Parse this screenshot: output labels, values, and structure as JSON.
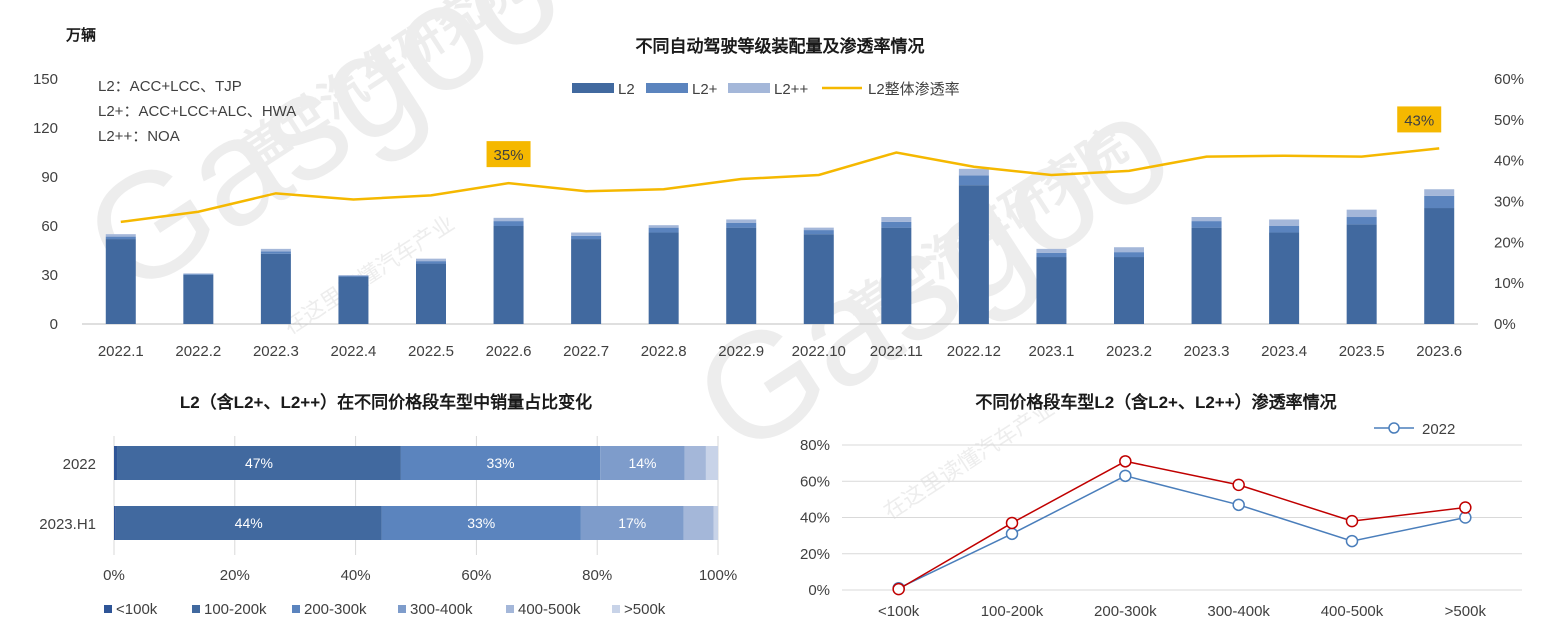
{
  "colors": {
    "l2": "#41699F",
    "l2p": "#5B84BE",
    "l2pp": "#A4B7D9",
    "rate": "#F5B800",
    "callout": "#F5B800",
    "line2022": "#4A7EBB",
    "line2023": "#C00000",
    "seg1": "#2F5597",
    "seg2": "#41699F",
    "seg3": "#5B84BE",
    "seg4": "#7E9CCB",
    "seg5": "#A4B7D9",
    "seg6": "#C8D3E8",
    "redText": "#C00000"
  },
  "watermark": {
    "brand_cn": "盖世汽车研究院",
    "brand_en": "Gasgoo",
    "slogan": "在这里读懂汽车产业"
  },
  "chart_data": [
    {
      "type": "bar",
      "title": "不同自动驾驶等级装配量及渗透率情况",
      "ylabel": "万辆",
      "ylim": [
        0,
        150
      ],
      "yticks": [
        "0",
        "30",
        "60",
        "90",
        "120",
        "150"
      ],
      "y2lim": [
        0,
        60
      ],
      "y2ticks": [
        "0%",
        "10%",
        "20%",
        "30%",
        "40%",
        "50%",
        "60%"
      ],
      "stacked": true,
      "legend_position": "top",
      "notes": [
        "L2：ACC+LCC、TJP",
        "L2+：ACC+LCC+ALC、HWA",
        "L2++：NOA"
      ],
      "categories": [
        "2022.1",
        "2022.2",
        "2022.3",
        "2022.4",
        "2022.5",
        "2022.6",
        "2022.7",
        "2022.8",
        "2022.9",
        "2022.10",
        "2022.11",
        "2022.12",
        "2023.1",
        "2023.2",
        "2023.3",
        "2023.4",
        "2023.5",
        "2023.6"
      ],
      "series": [
        {
          "name": "L2",
          "values": [
            52,
            30,
            43,
            29,
            37,
            60,
            52,
            56,
            59,
            55,
            59,
            85,
            41,
            41,
            59,
            56,
            61,
            71
          ]
        },
        {
          "name": "L2+",
          "values": [
            1.5,
            0.5,
            1.5,
            0.5,
            1.5,
            3,
            2,
            3,
            3,
            2.5,
            3.5,
            6,
            2.5,
            3,
            4,
            4,
            4.5,
            7.5
          ]
        },
        {
          "name": "L2++",
          "values": [
            1.5,
            0.5,
            1.5,
            0.5,
            1.5,
            2,
            2,
            1.5,
            2,
            1.5,
            3,
            4,
            2.5,
            3,
            2.5,
            4,
            4.5,
            4
          ]
        },
        {
          "name": "L2整体渗透率",
          "axis": "right",
          "values": [
            25,
            27.5,
            32,
            30.5,
            31.5,
            34.5,
            32.5,
            33,
            35.5,
            36.5,
            42,
            38.5,
            36.5,
            37.5,
            41,
            41.2,
            41,
            43
          ]
        }
      ],
      "annotations": [
        {
          "category": "2022.6",
          "text": "35%"
        },
        {
          "category": "2023.6",
          "text": "43%"
        }
      ]
    },
    {
      "type": "bar",
      "orientation": "horizontal",
      "stacked": true,
      "title": "L2（含L2+、L2++）在不同价格段车型中销量占比变化",
      "categories": [
        "2022",
        "2023.H1"
      ],
      "xlim": [
        0,
        100
      ],
      "xticks": [
        "0%",
        "20%",
        "40%",
        "60%",
        "80%",
        "100%"
      ],
      "legend_position": "bottom",
      "series": [
        {
          "name": "<100k",
          "values": [
            0.5,
            0.3
          ]
        },
        {
          "name": "100-200k",
          "values": [
            47,
            44
          ]
        },
        {
          "name": "200-300k",
          "values": [
            33,
            33
          ]
        },
        {
          "name": "300-400k",
          "values": [
            14,
            17
          ]
        },
        {
          "name": "400-500k",
          "values": [
            3.5,
            5
          ]
        },
        {
          "name": ">500k",
          "values": [
            2,
            0.7
          ]
        }
      ],
      "data_labels": [
        [
          "",
          "47%",
          "33%",
          "14%",
          "",
          ""
        ],
        [
          "",
          "44%",
          "33%",
          "17%",
          "",
          ""
        ]
      ]
    },
    {
      "type": "line",
      "title": "不同价格段车型L2（含L2+、L2++）渗透率情况",
      "categories": [
        "<100k",
        "100-200k",
        "200-300k",
        "300-400k",
        "400-500k",
        ">500k"
      ],
      "ylim": [
        0,
        80
      ],
      "yticks": [
        "0%",
        "20%",
        "40%",
        "60%",
        "80%"
      ],
      "grid": true,
      "legend_position": "top-right",
      "series": [
        {
          "name": "2022",
          "values": [
            1,
            31,
            63,
            47,
            27,
            40
          ]
        },
        {
          "values": [
            0.5,
            37,
            71,
            58,
            38,
            45.5
          ]
        }
      ]
    }
  ]
}
